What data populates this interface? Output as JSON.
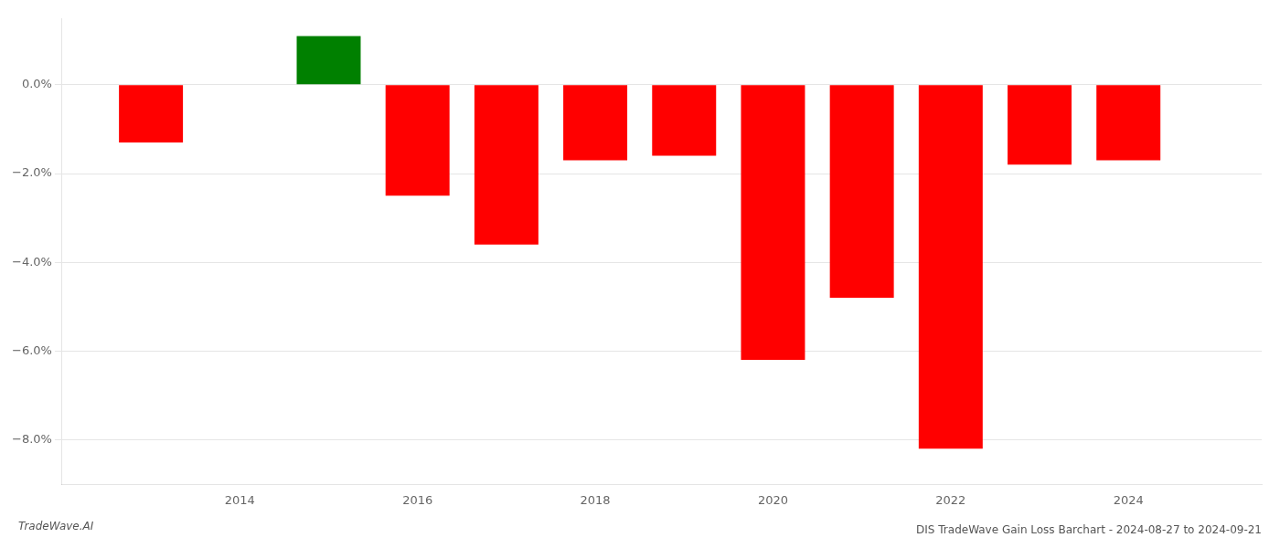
{
  "chart_data": {
    "type": "bar",
    "title": "DIS TradeWave Gain Loss Barchart - 2024-08-27 to 2024-09-21",
    "annotations": [
      "TradeWave.AI"
    ],
    "x": [
      2013,
      2015,
      2016,
      2017,
      2018,
      2019,
      2020,
      2021,
      2022,
      2023,
      2024
    ],
    "values": [
      -1.3,
      1.1,
      -2.5,
      -3.6,
      -1.7,
      -1.6,
      -6.2,
      -4.8,
      -8.2,
      -1.8,
      -1.7
    ],
    "colors": [
      "#ff0000",
      "#008000",
      "#ff0000",
      "#ff0000",
      "#ff0000",
      "#ff0000",
      "#ff0000",
      "#ff0000",
      "#ff0000",
      "#ff0000",
      "#ff0000"
    ],
    "xlim": [
      2012.0,
      2025.5
    ],
    "xticks": [
      2014,
      2016,
      2018,
      2020,
      2022,
      2024
    ],
    "ylim": [
      -9.0,
      1.5
    ],
    "yticks": [
      {
        "value": 0.0,
        "label": "0.0%"
      },
      {
        "value": -2.0,
        "label": "−2.0%"
      },
      {
        "value": -4.0,
        "label": "−4.0%"
      },
      {
        "value": -6.0,
        "label": "−6.0%"
      },
      {
        "value": -8.0,
        "label": "−8.0%"
      }
    ],
    "grid": "y"
  }
}
